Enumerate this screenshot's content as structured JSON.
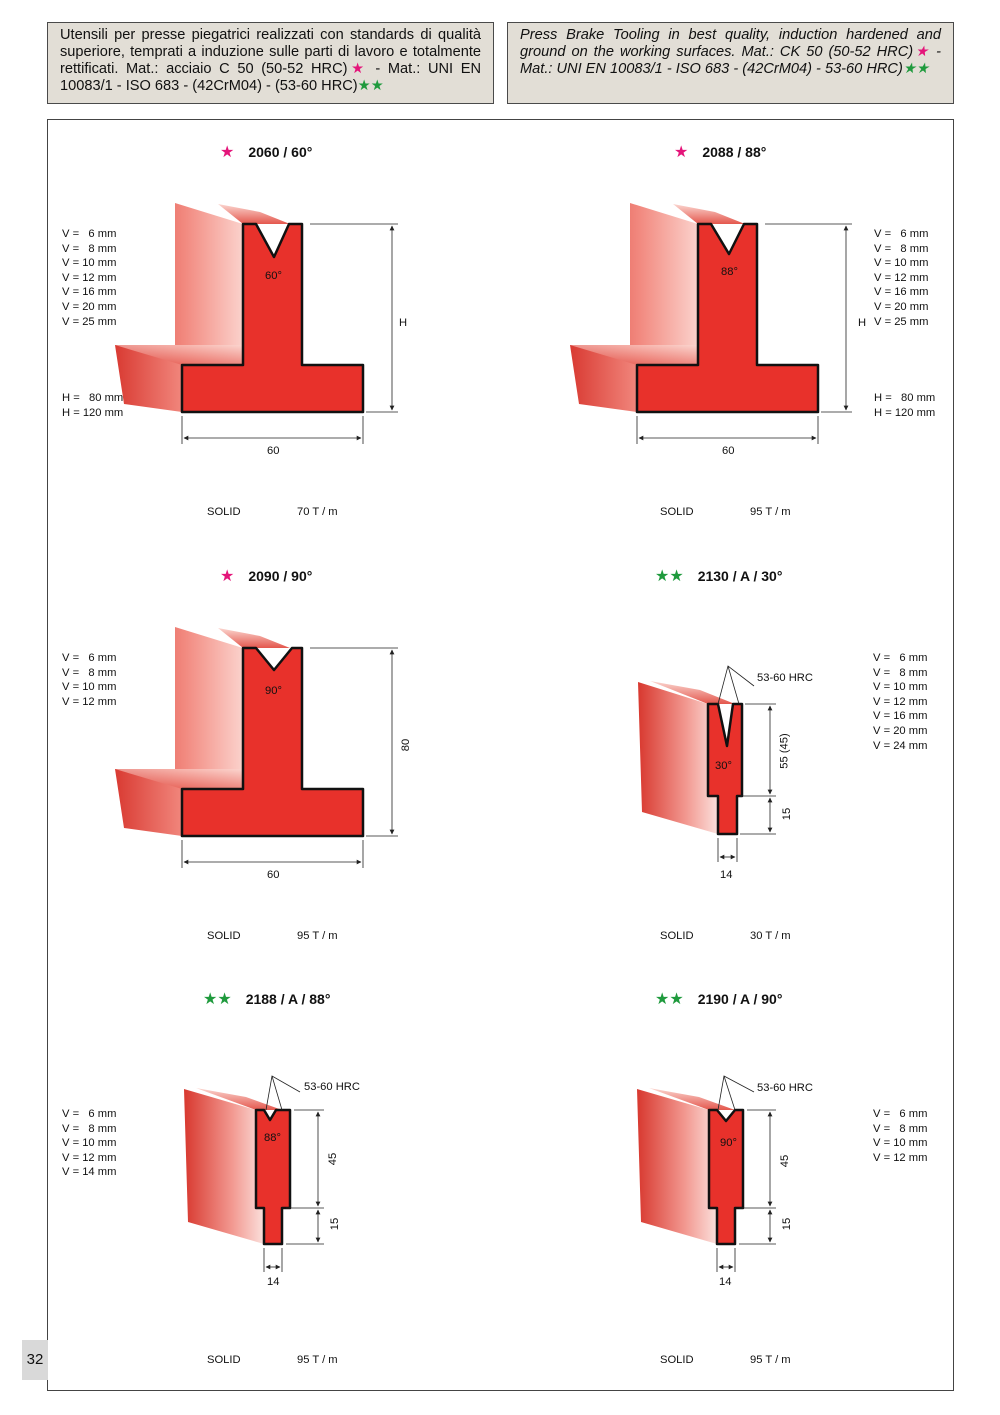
{
  "header": {
    "italian_text": "Utensili per presse piegatrici realizzati con standards di qualità superiore, temprati a induzione sulle parti di lavoro e totalmente rettificati. Mat.: acciaio C 50 (50-52 HRC)",
    "italian_mid": " - Mat.: UNI EN 10083/1 - ISO 683 - (42CrM04) - (53-60 HRC)",
    "english_text": "Press Brake Tooling in best quality, induction hardened and ground on the working surfaces. Mat.: CK 50 (50-52 HRC)",
    "english_mid": " - Mat.: UNI EN 10083/1 - ISO 683 - (42CrM04) - 53-60 HRC)",
    "star_one": "★",
    "star_two": "★★"
  },
  "page_number": "32",
  "colors": {
    "tool_red": "#e8312b",
    "pink_star": "#e4157a",
    "green_star": "#1f9a3d"
  },
  "tools": [
    {
      "stars": "★",
      "code": "2060 / 60°",
      "angle": "60°",
      "v_list": "V =   6 mm\nV =   8 mm\nV = 10 mm\nV = 12 mm\nV = 16 mm\nV = 20 mm\nV = 25 mm",
      "h_list": "H =   80 mm\nH = 120 mm",
      "height_label": "H",
      "width_label": "60",
      "type": "SOLID",
      "capacity": "70 T / m"
    },
    {
      "stars": "★",
      "code": "2088 / 88°",
      "angle": "88°",
      "v_list": "V =   6 mm\nV =   8 mm\nV = 10 mm\nV = 12 mm\nV = 16 mm\nV = 20 mm\nV = 25 mm",
      "h_list": "H =   80 mm\nH = 120 mm",
      "height_label": "H",
      "width_label": "60",
      "type": "SOLID",
      "capacity": "95 T / m"
    },
    {
      "stars": "★",
      "code": "2090 / 90°",
      "angle": "90°",
      "v_list": "V =   6 mm\nV =   8 mm\nV = 10 mm\nV = 12 mm",
      "height_label": "80",
      "width_label": "60",
      "type": "SOLID",
      "capacity": "95 T / m"
    },
    {
      "stars": "★★",
      "code": "2130 / A / 30°",
      "angle": "30°",
      "v_list": "V =   6 mm\nV =   8 mm\nV = 10 mm\nV = 12 mm\nV = 16 mm\nV = 20 mm\nV = 24 mm",
      "hrc": "53-60 HRC",
      "upper_label": "55 (45)",
      "lower_label": "15",
      "width_label": "14",
      "type": "SOLID",
      "capacity": "30 T / m"
    },
    {
      "stars": "★★",
      "code": "2188 / A / 88°",
      "angle": "88°",
      "v_list": "V =   6 mm\nV =   8 mm\nV = 10 mm\nV = 12 mm\nV = 14 mm",
      "hrc": "53-60 HRC",
      "upper_label": "45",
      "lower_label": "15",
      "width_label": "14",
      "type": "SOLID",
      "capacity": "95 T / m"
    },
    {
      "stars": "★★",
      "code": "2190 / A / 90°",
      "angle": "90°",
      "v_list": "V =   6 mm\nV =   8 mm\nV = 10 mm\nV = 12 mm",
      "hrc": "53-60 HRC",
      "upper_label": "45",
      "lower_label": "15",
      "width_label": "14",
      "type": "SOLID",
      "capacity": "95 T / m"
    }
  ]
}
